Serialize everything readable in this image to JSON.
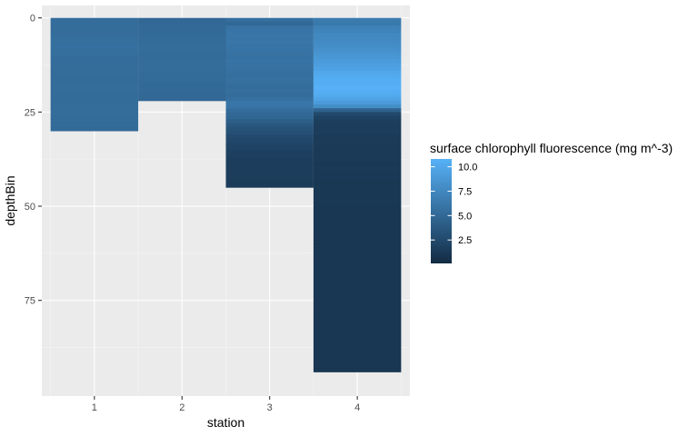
{
  "chart_data": {
    "type": "heatmap",
    "xlabel": "station",
    "ylabel": "depthBin",
    "x_categories": [
      "1",
      "2",
      "3",
      "4"
    ],
    "y_range": [
      0,
      97
    ],
    "y_reversed": true,
    "y_ticks": [
      0,
      25,
      50,
      75
    ],
    "grid": true,
    "legend": {
      "title": "surface chlorophyll fluorescence (mg m^-3)",
      "placement": "right",
      "range": [
        0.1,
        10.8
      ],
      "ticks": [
        10.0,
        7.5,
        5.0,
        2.5
      ],
      "tick_labels": [
        "10.0",
        "7.5",
        "5.0",
        "2.5"
      ],
      "colors": {
        "low": "#132B43",
        "high": "#56B1F7"
      }
    },
    "series": [
      {
        "station": "1",
        "max_depth": 30,
        "values": [
          5.4,
          5.4,
          5.3,
          5.3,
          5.4,
          5.5,
          5.5,
          5.6,
          5.5,
          5.5,
          5.4,
          5.4,
          5.3,
          5.3,
          5.3,
          5.2,
          5.2,
          5.3,
          5.3,
          5.3,
          5.2,
          5.2,
          5.2,
          5.3,
          5.3,
          5.3,
          5.2,
          5.2,
          5.2,
          5.1
        ]
      },
      {
        "station": "2",
        "max_depth": 22,
        "values": [
          5.0,
          5.0,
          5.1,
          5.1,
          5.1,
          5.2,
          5.2,
          5.3,
          5.3,
          5.2,
          5.2,
          5.3,
          5.3,
          5.3,
          5.2,
          5.2,
          5.2,
          5.1,
          5.1,
          5.1,
          5.0,
          5.0
        ]
      },
      {
        "station": "3",
        "max_depth": 45,
        "values": [
          5.5,
          5.0,
          5.8,
          6.0,
          6.1,
          6.0,
          6.2,
          6.0,
          5.9,
          5.8,
          5.7,
          5.9,
          5.8,
          5.7,
          5.6,
          5.5,
          5.7,
          5.5,
          5.4,
          5.5,
          5.3,
          5.6,
          6.1,
          6.0,
          5.4,
          5.0,
          4.8,
          4.2,
          3.6,
          3.2,
          3.0,
          2.6,
          2.4,
          2.1,
          2.0,
          1.8,
          1.8,
          1.6,
          1.6,
          1.5,
          1.5,
          1.5,
          1.5,
          1.4,
          1.4
        ]
      },
      {
        "station": "4",
        "max_depth": 94,
        "values": [
          6.5,
          6.3,
          7.0,
          7.2,
          7.5,
          7.6,
          7.8,
          8.0,
          8.2,
          8.5,
          8.8,
          9.0,
          9.3,
          9.6,
          10.0,
          10.3,
          10.5,
          10.6,
          10.8,
          10.6,
          10.3,
          9.8,
          9.0,
          8.0,
          4.5,
          2.5,
          1.9,
          1.7,
          1.6,
          1.5,
          1.5,
          1.4,
          1.4,
          1.4,
          1.3,
          1.3,
          1.3,
          1.3,
          1.2,
          1.2,
          1.2,
          1.2,
          1.2,
          1.1,
          1.1,
          1.1,
          1.1,
          1.1,
          1.1,
          1.1,
          1.0,
          1.0,
          1.0,
          1.0,
          1.0,
          1.0,
          1.0,
          1.0,
          1.0,
          1.0,
          1.0,
          1.0,
          1.0,
          1.0,
          1.0,
          1.0,
          1.0,
          1.0,
          1.0,
          1.0,
          1.0,
          1.0,
          1.0,
          1.0,
          1.0,
          1.0,
          1.0,
          1.0,
          1.0,
          1.0,
          1.0,
          1.0,
          1.0,
          1.0,
          1.0,
          1.0,
          1.0,
          1.0,
          1.0,
          1.0,
          1.0,
          1.0,
          1.0,
          1.0
        ]
      }
    ]
  }
}
